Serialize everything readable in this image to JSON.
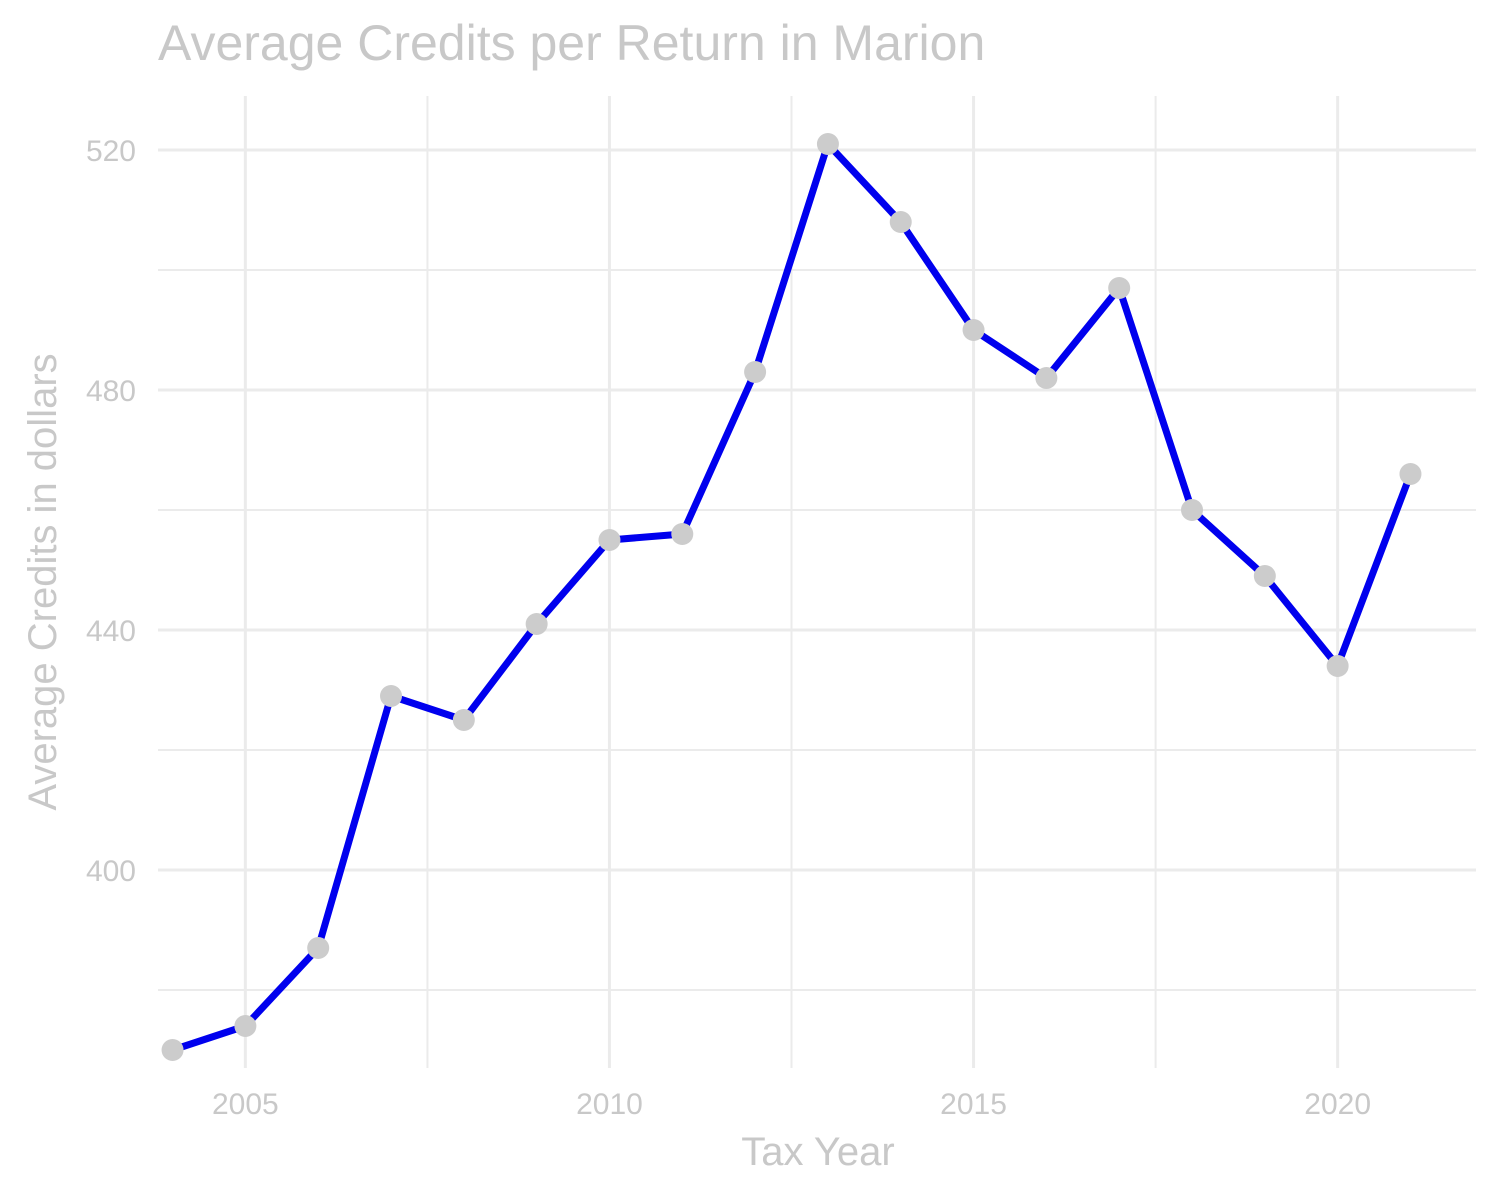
{
  "chart_data": {
    "type": "line",
    "title": "Average Credits per Return in Marion",
    "xlabel": "Tax Year",
    "ylabel": "Average Credits in dollars",
    "x": [
      2004,
      2005,
      2006,
      2007,
      2008,
      2009,
      2010,
      2011,
      2012,
      2013,
      2014,
      2015,
      2016,
      2017,
      2018,
      2019,
      2020,
      2021
    ],
    "series": [
      {
        "values": [
          370,
          374,
          387,
          429,
          425,
          441,
          455,
          456,
          483,
          521,
          508,
          490,
          482,
          497,
          460,
          449,
          434,
          466
        ]
      }
    ],
    "x_ticks": [
      "2005",
      "2010",
      "2015",
      "2020"
    ],
    "y_ticks": [
      "400",
      "440",
      "480",
      "520"
    ],
    "xlim": [
      2003.8,
      2021.9
    ],
    "ylim": [
      367,
      529
    ],
    "grid": true,
    "line_color": "#0000ee",
    "point_color": "#cccccc",
    "grid_color": "#ebebeb",
    "text_color": "#c8c8c8"
  }
}
